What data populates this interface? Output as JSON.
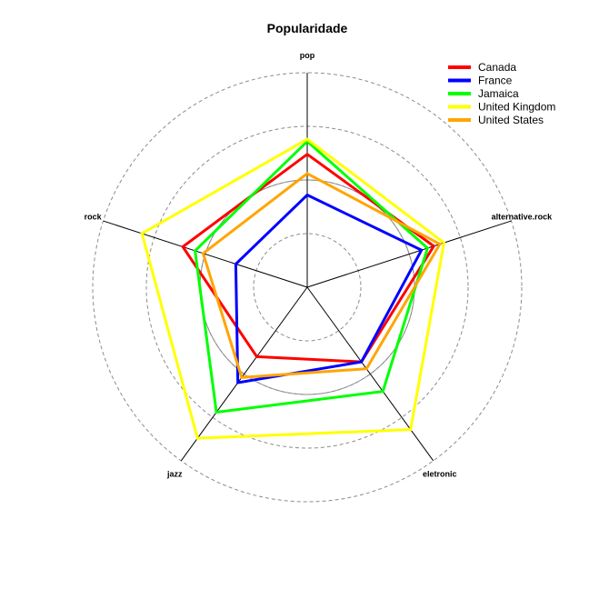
{
  "chart_data": {
    "type": "radar",
    "title": "Popularidade",
    "axes": [
      "pop",
      "alternative.rock",
      "eletronic",
      "jazz",
      "rock"
    ],
    "grid": {
      "dashed_rings": [
        0.25,
        0.5,
        0.75,
        1.0
      ],
      "solid_ring": 0.5
    },
    "legend_position": "top-right",
    "series": [
      {
        "name": "Canada",
        "color": "#ff0000",
        "values": [
          0.62,
          0.62,
          0.43,
          0.4,
          0.61
        ]
      },
      {
        "name": "France",
        "color": "#0000ff",
        "values": [
          0.43,
          0.56,
          0.43,
          0.55,
          0.35
        ]
      },
      {
        "name": "Jamaica",
        "color": "#00ff00",
        "values": [
          0.68,
          0.59,
          0.6,
          0.72,
          0.55
        ]
      },
      {
        "name": "United Kingdom",
        "color": "#ffff00",
        "values": [
          0.69,
          0.67,
          0.82,
          0.87,
          0.81
        ]
      },
      {
        "name": "United States",
        "color": "#ffa500",
        "values": [
          0.53,
          0.65,
          0.47,
          0.52,
          0.51
        ]
      }
    ]
  }
}
